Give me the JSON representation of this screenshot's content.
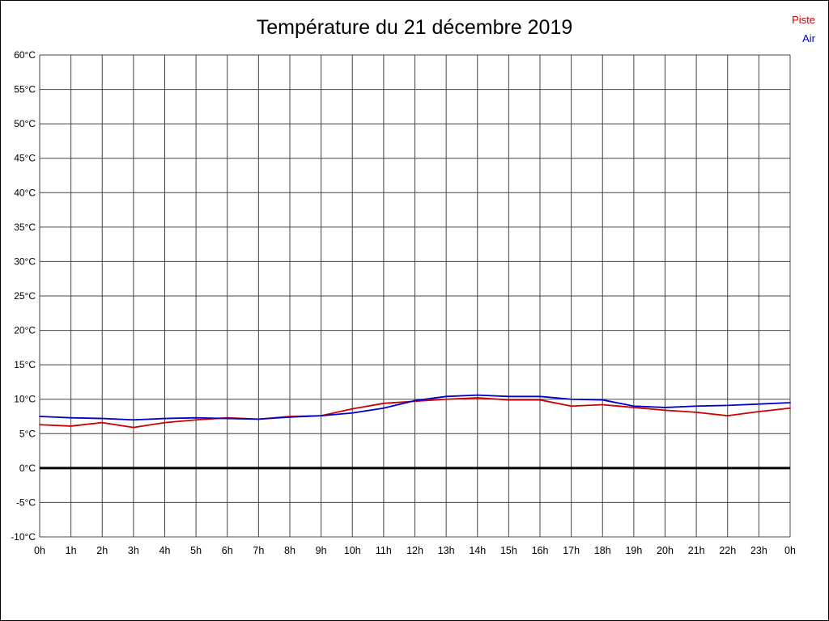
{
  "chart_data": {
    "type": "line",
    "title": "Température du 21 décembre 2019",
    "xlabel": "",
    "ylabel": "",
    "x_labels": [
      "0h",
      "1h",
      "2h",
      "3h",
      "4h",
      "5h",
      "6h",
      "7h",
      "8h",
      "9h",
      "10h",
      "11h",
      "12h",
      "13h",
      "14h",
      "15h",
      "16h",
      "17h",
      "18h",
      "19h",
      "20h",
      "21h",
      "22h",
      "23h",
      "0h"
    ],
    "ylim": [
      -10,
      60
    ],
    "ytick_step": 5,
    "ytick_suffix": "°C",
    "grid": true,
    "legend_position": "top-right",
    "zero_line": {
      "value": 0,
      "color": "#000000",
      "width": 3
    },
    "series": [
      {
        "name": "Piste",
        "color": "#cc0000",
        "values": [
          6.3,
          6.1,
          6.6,
          5.9,
          6.6,
          7.0,
          7.3,
          7.1,
          7.5,
          7.6,
          8.6,
          9.4,
          9.7,
          10.0,
          10.2,
          9.9,
          9.9,
          9.0,
          9.2,
          8.8,
          8.4,
          8.1,
          7.6,
          8.2,
          8.7
        ]
      },
      {
        "name": "Air",
        "color": "#0000cc",
        "values": [
          7.5,
          7.3,
          7.2,
          7.0,
          7.2,
          7.3,
          7.2,
          7.1,
          7.4,
          7.6,
          8.0,
          8.7,
          9.8,
          10.4,
          10.6,
          10.4,
          10.4,
          10.0,
          9.9,
          9.0,
          8.8,
          9.0,
          9.1,
          9.3,
          9.5
        ]
      }
    ]
  },
  "style": {
    "grid_color": "#444444",
    "text_color": "#000000",
    "background": "#ffffff"
  }
}
